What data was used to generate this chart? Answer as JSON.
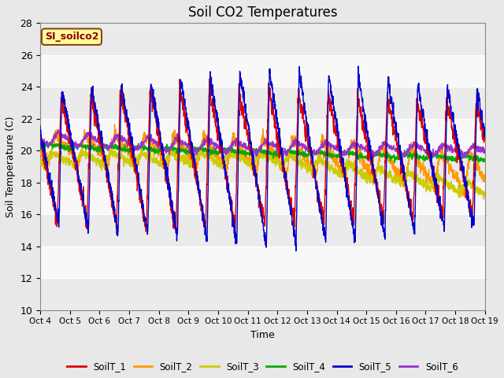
{
  "title": "Soil CO2 Temperatures",
  "xlabel": "Time",
  "ylabel": "Soil Temperature (C)",
  "ylim": [
    10,
    28
  ],
  "annotation": "SI_soilco2",
  "x_tick_labels": [
    "Oct 4",
    "Oct 5",
    "Oct 6",
    "Oct 7",
    "Oct 8",
    "Oct 9",
    "Oct 10",
    "Oct 11",
    "Oct 12",
    "Oct 13",
    "Oct 14",
    "Oct 15",
    "Oct 16",
    "Oct 17",
    "Oct 18",
    "Oct 19"
  ],
  "series_colors": {
    "SoilT_1": "#dd0000",
    "SoilT_2": "#ff9900",
    "SoilT_3": "#cccc00",
    "SoilT_4": "#00aa00",
    "SoilT_5": "#0000cc",
    "SoilT_6": "#9933cc"
  },
  "figsize": [
    6.4,
    4.8
  ],
  "dpi": 100,
  "background_color": "#e8e8e8",
  "band_light": "#f0f0f0",
  "band_dark": "#e0e0e0",
  "yticks": [
    10,
    12,
    14,
    16,
    18,
    20,
    22,
    24,
    26,
    28
  ],
  "legend_labels": [
    "SoilT_1",
    "SoilT_2",
    "SoilT_3",
    "SoilT_4",
    "SoilT_5",
    "SoilT_6"
  ]
}
